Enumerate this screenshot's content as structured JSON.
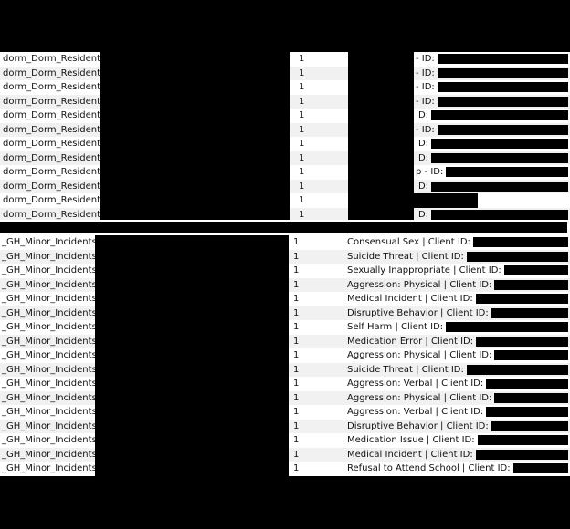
{
  "dorm_rows": [
    {
      "name": "dorm_Dorm_Resident",
      "count": "1",
      "detail": "- ID:"
    },
    {
      "name": "dorm_Dorm_Resident",
      "count": "1",
      "detail": "- ID:"
    },
    {
      "name": "dorm_Dorm_Resident",
      "count": "1",
      "detail": "- ID:"
    },
    {
      "name": "dorm_Dorm_Resident",
      "count": "1",
      "detail": "- ID:"
    },
    {
      "name": "dorm_Dorm_Resident",
      "count": "1",
      "detail": "ID:"
    },
    {
      "name": "dorm_Dorm_Resident",
      "count": "1",
      "detail": "- ID:"
    },
    {
      "name": "dorm_Dorm_Resident",
      "count": "1",
      "detail": "ID:"
    },
    {
      "name": "dorm_Dorm_Resident",
      "count": "1",
      "detail": "ID:"
    },
    {
      "name": "dorm_Dorm_Resident",
      "count": "1",
      "detail": "p - ID:"
    },
    {
      "name": "dorm_Dorm_Resident",
      "count": "1",
      "detail": "ID:"
    },
    {
      "name": "dorm_Dorm_Resident",
      "count": "1",
      "detail": null
    },
    {
      "name": "dorm_Dorm_Resident",
      "count": "1",
      "detail": "ID:"
    }
  ],
  "incident_rows": [
    {
      "name": "_GH_Minor_Incidents",
      "count": "1",
      "detail": "Consensual Sex | Client ID:"
    },
    {
      "name": "_GH_Minor_Incidents",
      "count": "1",
      "detail": "Suicide Threat | Client ID:"
    },
    {
      "name": "_GH_Minor_Incidents",
      "count": "1",
      "detail": "Sexually Inappropriate | Client ID:"
    },
    {
      "name": "_GH_Minor_Incidents",
      "count": "1",
      "detail": "Aggression: Physical | Client ID:"
    },
    {
      "name": "_GH_Minor_Incidents",
      "count": "1",
      "detail": "Medical Incident | Client ID:"
    },
    {
      "name": "_GH_Minor_Incidents",
      "count": "1",
      "detail": "Disruptive Behavior | Client ID:"
    },
    {
      "name": "_GH_Minor_Incidents",
      "count": "1",
      "detail": "Self Harm | Client ID:"
    },
    {
      "name": "_GH_Minor_Incidents",
      "count": "1",
      "detail": "Medication Error | Client ID:"
    },
    {
      "name": "_GH_Minor_Incidents",
      "count": "1",
      "detail": "Aggression: Physical | Client ID:"
    },
    {
      "name": "_GH_Minor_Incidents",
      "count": "1",
      "detail": "Suicide Threat | Client ID:"
    },
    {
      "name": "_GH_Minor_Incidents",
      "count": "1",
      "detail": "Aggression: Verbal | Client ID:"
    },
    {
      "name": "_GH_Minor_Incidents",
      "count": "1",
      "detail": "Aggression: Physical | Client ID:"
    },
    {
      "name": "_GH_Minor_Incidents",
      "count": "1",
      "detail": "Aggression: Verbal | Client ID:"
    },
    {
      "name": "_GH_Minor_Incidents",
      "count": "1",
      "detail": "Disruptive Behavior | Client ID:"
    },
    {
      "name": "_GH_Minor_Incidents",
      "count": "1",
      "detail": "Medication Issue | Client ID:"
    },
    {
      "name": "_GH_Minor_Incidents",
      "count": "1",
      "detail": "Medical Incident | Client ID:"
    },
    {
      "name": "_GH_Minor_Incidents",
      "count": "1",
      "detail": "Refusal to Attend School | Client ID:"
    }
  ]
}
